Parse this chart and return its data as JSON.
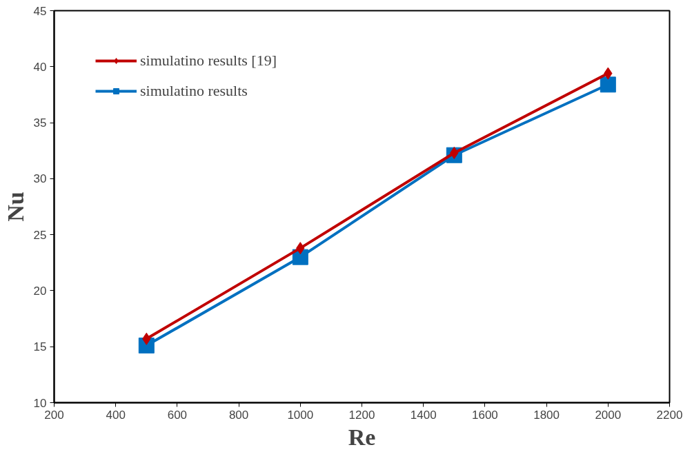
{
  "chart_data": {
    "type": "line",
    "xlabel": "Re",
    "ylabel": "Nu",
    "x": [
      500,
      1000,
      1500,
      2000
    ],
    "series": [
      {
        "name": "simulatino results [19]",
        "color": "#c00000",
        "marker": "diamond",
        "values": [
          15.7,
          23.8,
          32.3,
          39.4
        ]
      },
      {
        "name": "simulatino results",
        "color": "#0070c0",
        "marker": "square",
        "values": [
          15.1,
          23.0,
          32.1,
          38.4
        ]
      }
    ],
    "xlim": [
      200,
      2200
    ],
    "xticks": [
      200,
      400,
      600,
      800,
      1000,
      1200,
      1400,
      1600,
      1800,
      2000,
      2200
    ],
    "ylim": [
      10,
      45
    ],
    "yticks": [
      10,
      15,
      20,
      25,
      30,
      35,
      40,
      45
    ],
    "grid": false,
    "legend": "top left",
    "line_style": "solid"
  }
}
